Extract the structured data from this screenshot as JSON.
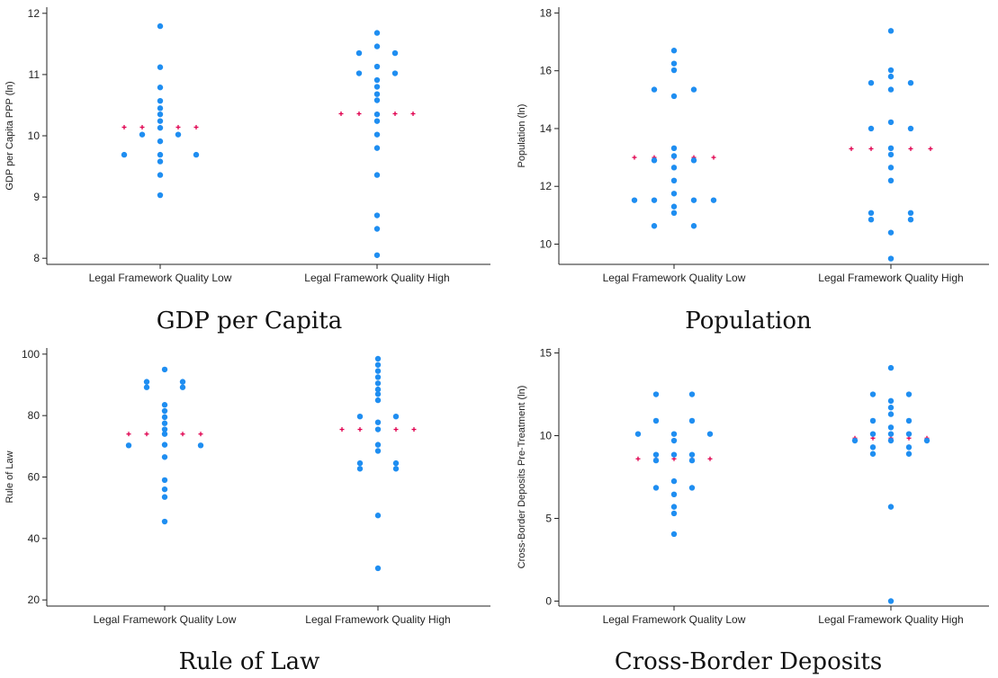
{
  "colors": {
    "point": "#1f8ef1",
    "median": "#e0004f",
    "axis": "#222222"
  },
  "chart_data": [
    {
      "type": "scatter",
      "subplot": "top-left",
      "caption": "GDP per Capita",
      "ylabel": "GDP per Capita PPP (ln)",
      "categories": [
        "Legal Framework Quality Low",
        "Legal Framework Quality High"
      ],
      "ylim": [
        7.9,
        12.1
      ],
      "yticks": [
        "8",
        "9",
        "10",
        "11",
        "12"
      ],
      "groups": [
        {
          "points": [
            {
              "dx": 0,
              "y": 11.79
            },
            {
              "dx": 0,
              "y": 11.12
            },
            {
              "dx": 0,
              "y": 10.79
            },
            {
              "dx": 0,
              "y": 10.57
            },
            {
              "dx": 0,
              "y": 10.45
            },
            {
              "dx": 0,
              "y": 10.35
            },
            {
              "dx": 0,
              "y": 10.24
            },
            {
              "dx": 0,
              "y": 10.13
            },
            {
              "dx": -1,
              "y": 10.02
            },
            {
              "dx": 1,
              "y": 10.02
            },
            {
              "dx": 0,
              "y": 9.91
            },
            {
              "dx": -2,
              "y": 9.69
            },
            {
              "dx": 0,
              "y": 9.69
            },
            {
              "dx": 2,
              "y": 9.69
            },
            {
              "dx": 0,
              "y": 9.58
            },
            {
              "dx": 0,
              "y": 9.36
            },
            {
              "dx": 0,
              "y": 9.03
            }
          ],
          "median": 10.14
        },
        {
          "points": [
            {
              "dx": 0,
              "y": 11.68
            },
            {
              "dx": 0,
              "y": 11.46
            },
            {
              "dx": -1,
              "y": 11.35
            },
            {
              "dx": 1,
              "y": 11.35
            },
            {
              "dx": 0,
              "y": 11.13
            },
            {
              "dx": -1,
              "y": 11.02
            },
            {
              "dx": 1,
              "y": 11.02
            },
            {
              "dx": 0,
              "y": 10.91
            },
            {
              "dx": 0,
              "y": 10.8
            },
            {
              "dx": 0,
              "y": 10.68
            },
            {
              "dx": 0,
              "y": 10.58
            },
            {
              "dx": 0,
              "y": 10.35
            },
            {
              "dx": 0,
              "y": 10.24
            },
            {
              "dx": 0,
              "y": 10.02
            },
            {
              "dx": 0,
              "y": 9.8
            },
            {
              "dx": 0,
              "y": 9.36
            },
            {
              "dx": 0,
              "y": 8.7
            },
            {
              "dx": 0,
              "y": 8.48
            },
            {
              "dx": 0,
              "y": 8.05
            }
          ],
          "median": 10.36
        }
      ]
    },
    {
      "type": "scatter",
      "subplot": "top-right",
      "caption": "Population",
      "ylabel": "Population (ln)",
      "categories": [
        "Legal Framework Quality Low",
        "Legal Framework Quality High"
      ],
      "ylim": [
        9.3,
        18.2
      ],
      "yticks": [
        "10",
        "12",
        "14",
        "16",
        "18"
      ],
      "groups": [
        {
          "points": [
            {
              "dx": 0,
              "y": 16.7
            },
            {
              "dx": 0,
              "y": 16.25
            },
            {
              "dx": 0,
              "y": 16.02
            },
            {
              "dx": -1,
              "y": 15.35
            },
            {
              "dx": 1,
              "y": 15.35
            },
            {
              "dx": 0,
              "y": 15.12
            },
            {
              "dx": 0,
              "y": 13.32
            },
            {
              "dx": 0,
              "y": 13.05
            },
            {
              "dx": -1,
              "y": 12.9
            },
            {
              "dx": 1,
              "y": 12.9
            },
            {
              "dx": 0,
              "y": 12.65
            },
            {
              "dx": 0,
              "y": 12.2
            },
            {
              "dx": 0,
              "y": 11.75
            },
            {
              "dx": -2,
              "y": 11.52
            },
            {
              "dx": -1,
              "y": 11.52
            },
            {
              "dx": 1,
              "y": 11.52
            },
            {
              "dx": 2,
              "y": 11.52
            },
            {
              "dx": 0,
              "y": 11.3
            },
            {
              "dx": 0,
              "y": 11.08
            },
            {
              "dx": -1,
              "y": 10.63
            },
            {
              "dx": 1,
              "y": 10.63
            }
          ],
          "median": 13.0
        },
        {
          "points": [
            {
              "dx": 0,
              "y": 17.38
            },
            {
              "dx": 0,
              "y": 16.02
            },
            {
              "dx": 0,
              "y": 15.8
            },
            {
              "dx": -1,
              "y": 15.58
            },
            {
              "dx": 1,
              "y": 15.58
            },
            {
              "dx": 0,
              "y": 15.35
            },
            {
              "dx": 0,
              "y": 14.22
            },
            {
              "dx": -1,
              "y": 14.0
            },
            {
              "dx": 1,
              "y": 14.0
            },
            {
              "dx": 0,
              "y": 13.32
            },
            {
              "dx": 0,
              "y": 13.1
            },
            {
              "dx": 0,
              "y": 12.65
            },
            {
              "dx": 0,
              "y": 12.2
            },
            {
              "dx": -1,
              "y": 11.08
            },
            {
              "dx": 1,
              "y": 11.08
            },
            {
              "dx": -1,
              "y": 10.85
            },
            {
              "dx": 1,
              "y": 10.85
            },
            {
              "dx": 0,
              "y": 10.4
            },
            {
              "dx": 0,
              "y": 9.5
            }
          ],
          "median": 13.3
        }
      ]
    },
    {
      "type": "scatter",
      "subplot": "bottom-left",
      "caption": "Rule of Law",
      "ylabel": "Rule of Law",
      "categories": [
        "Legal Framework Quality Low",
        "Legal Framework Quality High"
      ],
      "ylim": [
        18,
        102
      ],
      "yticks": [
        "20",
        "40",
        "60",
        "80",
        "100"
      ],
      "groups": [
        {
          "points": [
            {
              "dx": 0,
              "y": 95
            },
            {
              "dx": -1,
              "y": 91
            },
            {
              "dx": 1,
              "y": 91
            },
            {
              "dx": -1,
              "y": 89.2
            },
            {
              "dx": 1,
              "y": 89.2
            },
            {
              "dx": 0,
              "y": 83.5
            },
            {
              "dx": 0,
              "y": 81.5
            },
            {
              "dx": 0,
              "y": 79.5
            },
            {
              "dx": 0,
              "y": 77.5
            },
            {
              "dx": 0,
              "y": 75.5
            },
            {
              "dx": 0,
              "y": 74
            },
            {
              "dx": -2,
              "y": 70.3
            },
            {
              "dx": 0,
              "y": 70.5
            },
            {
              "dx": 2,
              "y": 70.3
            },
            {
              "dx": 0,
              "y": 66.5
            },
            {
              "dx": 0,
              "y": 59
            },
            {
              "dx": 0,
              "y": 56
            },
            {
              "dx": 0,
              "y": 53.5
            },
            {
              "dx": 0,
              "y": 45.5
            }
          ],
          "median": 74
        },
        {
          "points": [
            {
              "dx": 0,
              "y": 98.5
            },
            {
              "dx": 0,
              "y": 96.5
            },
            {
              "dx": 0,
              "y": 94.5
            },
            {
              "dx": 0,
              "y": 92.5
            },
            {
              "dx": 0,
              "y": 90.5
            },
            {
              "dx": 0,
              "y": 88.5
            },
            {
              "dx": 0,
              "y": 87
            },
            {
              "dx": 0,
              "y": 85
            },
            {
              "dx": -1,
              "y": 79.7
            },
            {
              "dx": 1,
              "y": 79.7
            },
            {
              "dx": 0,
              "y": 77.8
            },
            {
              "dx": 0,
              "y": 75.5
            },
            {
              "dx": 0,
              "y": 70.5
            },
            {
              "dx": 0,
              "y": 68.5
            },
            {
              "dx": -1,
              "y": 64.5
            },
            {
              "dx": 1,
              "y": 64.5
            },
            {
              "dx": -1,
              "y": 62.7
            },
            {
              "dx": 1,
              "y": 62.7
            },
            {
              "dx": 0,
              "y": 47.5
            },
            {
              "dx": 0,
              "y": 30.3
            }
          ],
          "median": 75.5
        }
      ]
    },
    {
      "type": "scatter",
      "subplot": "bottom-right",
      "caption": "Cross-Border Deposits",
      "ylabel": "Cross-Border Deposits Pre-Treatment (ln)",
      "categories": [
        "Legal Framework Quality Low",
        "Legal Framework Quality High"
      ],
      "ylim": [
        -0.3,
        15.3
      ],
      "yticks": [
        "0",
        "5",
        "10",
        "15"
      ],
      "groups": [
        {
          "points": [
            {
              "dx": -1,
              "y": 12.5
            },
            {
              "dx": 1,
              "y": 12.5
            },
            {
              "dx": -1,
              "y": 10.9
            },
            {
              "dx": 1,
              "y": 10.9
            },
            {
              "dx": -2,
              "y": 10.1
            },
            {
              "dx": 0,
              "y": 10.1
            },
            {
              "dx": 2,
              "y": 10.1
            },
            {
              "dx": 0,
              "y": 9.7
            },
            {
              "dx": -1,
              "y": 8.85
            },
            {
              "dx": 0,
              "y": 8.85
            },
            {
              "dx": 1,
              "y": 8.85
            },
            {
              "dx": -1,
              "y": 8.5
            },
            {
              "dx": 1,
              "y": 8.5
            },
            {
              "dx": 0,
              "y": 7.25
            },
            {
              "dx": -1,
              "y": 6.85
            },
            {
              "dx": 1,
              "y": 6.85
            },
            {
              "dx": 0,
              "y": 6.45
            },
            {
              "dx": 0,
              "y": 5.7
            },
            {
              "dx": 0,
              "y": 5.3
            },
            {
              "dx": 0,
              "y": 4.05
            }
          ],
          "median": 8.6
        },
        {
          "points": [
            {
              "dx": 0,
              "y": 14.1
            },
            {
              "dx": -1,
              "y": 12.5
            },
            {
              "dx": 1,
              "y": 12.5
            },
            {
              "dx": 0,
              "y": 12.1
            },
            {
              "dx": 0,
              "y": 11.7
            },
            {
              "dx": 0,
              "y": 11.3
            },
            {
              "dx": -1,
              "y": 10.9
            },
            {
              "dx": 1,
              "y": 10.9
            },
            {
              "dx": 0,
              "y": 10.5
            },
            {
              "dx": -1,
              "y": 10.1
            },
            {
              "dx": 0,
              "y": 10.1
            },
            {
              "dx": 1,
              "y": 10.1
            },
            {
              "dx": -2,
              "y": 9.7
            },
            {
              "dx": 0,
              "y": 9.7
            },
            {
              "dx": 2,
              "y": 9.7
            },
            {
              "dx": -1,
              "y": 9.3
            },
            {
              "dx": 1,
              "y": 9.3
            },
            {
              "dx": -1,
              "y": 8.9
            },
            {
              "dx": 1,
              "y": 8.9
            },
            {
              "dx": 0,
              "y": 5.7
            },
            {
              "dx": 0,
              "y": 0
            }
          ],
          "median": 9.85
        }
      ]
    }
  ]
}
